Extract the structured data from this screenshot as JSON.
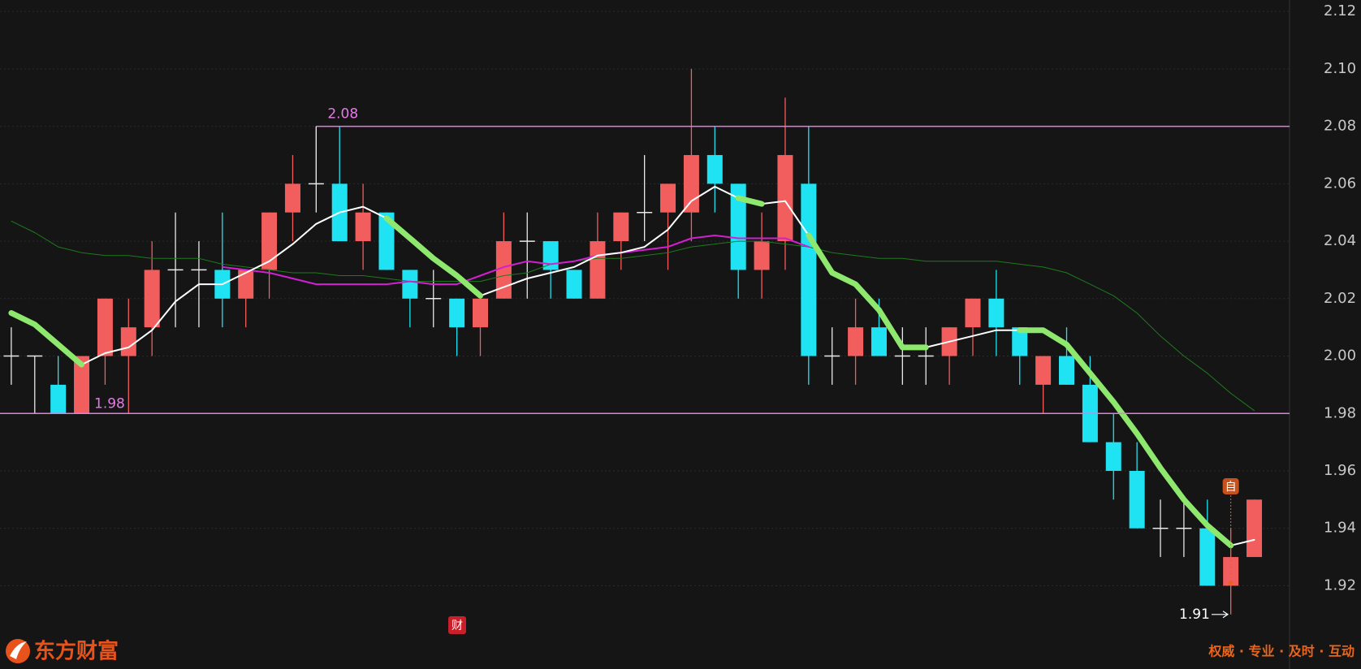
{
  "chart_data": {
    "type": "candlestick",
    "up_color": "#f25d5d",
    "down_color": "#1fe3f2",
    "flat_color": "#e8e8e8",
    "open": [
      2.0,
      2.0,
      1.99,
      1.98,
      2.0,
      2.0,
      2.01,
      2.03,
      2.03,
      2.03,
      2.02,
      2.03,
      2.05,
      2.06,
      2.06,
      2.04,
      2.05,
      2.03,
      2.02,
      2.02,
      2.01,
      2.02,
      2.04,
      2.04,
      2.03,
      2.02,
      2.04,
      2.05,
      2.05,
      2.05,
      2.07,
      2.06,
      2.03,
      2.04,
      2.06,
      2.0,
      2.0,
      2.01,
      2.0,
      2.0,
      2.0,
      2.01,
      2.02,
      2.01,
      1.99,
      2.0,
      1.99,
      1.97,
      1.96,
      1.94,
      1.94,
      1.94,
      1.92,
      1.93
    ],
    "high": [
      2.01,
      2.0,
      2.0,
      2.0,
      2.02,
      2.02,
      2.04,
      2.05,
      2.04,
      2.05,
      2.03,
      2.05,
      2.07,
      2.08,
      2.08,
      2.06,
      2.05,
      2.03,
      2.03,
      2.02,
      2.02,
      2.05,
      2.05,
      2.04,
      2.03,
      2.05,
      2.05,
      2.07,
      2.06,
      2.1,
      2.08,
      2.06,
      2.05,
      2.09,
      2.08,
      2.01,
      2.02,
      2.02,
      2.01,
      2.01,
      2.01,
      2.02,
      2.03,
      2.01,
      2.0,
      2.01,
      2.0,
      1.98,
      1.97,
      1.95,
      1.95,
      1.95,
      1.94,
      1.95
    ],
    "low": [
      1.99,
      1.98,
      1.98,
      1.98,
      1.99,
      1.98,
      2.0,
      2.01,
      2.01,
      2.01,
      2.01,
      2.02,
      2.04,
      2.05,
      2.04,
      2.03,
      2.03,
      2.01,
      2.01,
      2.0,
      2.0,
      2.02,
      2.02,
      2.02,
      2.02,
      2.02,
      2.03,
      2.04,
      2.03,
      2.04,
      2.05,
      2.02,
      2.02,
      2.03,
      1.99,
      1.99,
      1.99,
      2.0,
      1.99,
      1.99,
      1.99,
      2.0,
      2.0,
      1.99,
      1.98,
      1.99,
      1.97,
      1.95,
      1.94,
      1.93,
      1.93,
      1.92,
      1.91,
      1.93
    ],
    "close": [
      2.0,
      2.0,
      1.98,
      2.0,
      2.02,
      2.01,
      2.03,
      2.03,
      2.03,
      2.02,
      2.03,
      2.05,
      2.06,
      2.06,
      2.04,
      2.05,
      2.03,
      2.02,
      2.02,
      2.01,
      2.02,
      2.04,
      2.04,
      2.03,
      2.02,
      2.04,
      2.05,
      2.05,
      2.06,
      2.07,
      2.06,
      2.03,
      2.04,
      2.07,
      2.0,
      2.0,
      2.01,
      2.0,
      2.0,
      2.0,
      2.01,
      2.02,
      2.01,
      2.0,
      2.0,
      1.99,
      1.97,
      1.96,
      1.94,
      1.94,
      1.94,
      1.92,
      1.93,
      1.95
    ],
    "lines": [
      {
        "color": "#1e7a1e",
        "width": 1,
        "values": [
          2.047,
          2.043,
          2.038,
          2.036,
          2.035,
          2.035,
          2.034,
          2.034,
          2.034,
          2.032,
          2.031,
          2.03,
          2.029,
          2.029,
          2.028,
          2.028,
          2.027,
          2.026,
          2.026,
          2.026,
          2.026,
          2.028,
          2.029,
          2.032,
          2.033,
          2.034,
          2.034,
          2.035,
          2.036,
          2.038,
          2.039,
          2.04,
          2.04,
          2.039,
          2.038,
          2.036,
          2.035,
          2.034,
          2.034,
          2.033,
          2.033,
          2.033,
          2.033,
          2.032,
          2.031,
          2.029,
          2.025,
          2.021,
          2.015,
          2.007,
          2.0,
          1.994,
          1.987,
          1.981
        ]
      },
      {
        "color": "#d020d0",
        "width": 2,
        "values": [
          null,
          null,
          null,
          null,
          null,
          null,
          null,
          null,
          null,
          2.031,
          2.03,
          2.029,
          2.027,
          2.025,
          2.025,
          2.025,
          2.025,
          2.026,
          2.025,
          2.025,
          2.028,
          2.031,
          2.033,
          2.032,
          2.033,
          2.035,
          2.036,
          2.037,
          2.038,
          2.041,
          2.042,
          2.041,
          2.041,
          2.041,
          2.038,
          null,
          null,
          null,
          null,
          null,
          null,
          null,
          null,
          null,
          null,
          null,
          null,
          null,
          null,
          null,
          null,
          null,
          null,
          null
        ]
      },
      {
        "color": "#ffffff",
        "width": 2,
        "values": [
          2.015,
          2.011,
          2.004,
          1.997,
          2.001,
          2.003,
          2.009,
          2.019,
          2.025,
          2.025,
          2.029,
          2.033,
          2.039,
          2.046,
          2.05,
          2.052,
          2.048,
          2.041,
          2.034,
          2.028,
          2.021,
          2.024,
          2.027,
          2.029,
          2.031,
          2.035,
          2.036,
          2.038,
          2.044,
          2.054,
          2.059,
          2.055,
          2.053,
          2.054,
          2.042,
          2.029,
          2.025,
          2.016,
          2.003,
          2.003,
          2.005,
          2.007,
          2.009,
          2.009,
          2.009,
          2.004,
          1.994,
          1.984,
          1.973,
          1.961,
          1.95,
          1.941,
          1.934,
          1.936
        ]
      },
      {
        "color": "#8ee86e",
        "width": 7,
        "values": [
          2.015,
          2.011,
          2.004,
          1.997,
          null,
          null,
          null,
          null,
          null,
          null,
          null,
          null,
          null,
          null,
          null,
          null,
          2.048,
          2.041,
          2.034,
          2.028,
          2.021,
          null,
          null,
          null,
          null,
          null,
          null,
          null,
          null,
          null,
          null,
          2.055,
          2.053,
          null,
          2.042,
          2.029,
          2.025,
          2.016,
          2.003,
          2.003,
          null,
          null,
          null,
          2.009,
          2.009,
          2.004,
          1.994,
          1.984,
          1.973,
          1.961,
          1.95,
          1.941,
          1.934,
          null
        ]
      }
    ],
    "levels": [
      {
        "value": 2.08,
        "color": "#e47ae4"
      },
      {
        "value": 1.98,
        "color": "#e47ae4"
      }
    ],
    "low_marker": {
      "value": 1.91
    },
    "badges": {
      "self": "自",
      "finance": "财"
    },
    "ylim": [
      1.891,
      2.124
    ],
    "yticks": [
      1.92,
      1.94,
      1.96,
      1.98,
      {
        "value": 2.0,
        "label": "2.00"
      },
      2.02,
      2.04,
      2.06,
      2.08,
      {
        "value": 2.1,
        "label": "2.10"
      },
      2.12
    ],
    "grid": true,
    "logo_text": "东方财富",
    "slogan": "权威 · 专业 · 及时 · 互动"
  }
}
